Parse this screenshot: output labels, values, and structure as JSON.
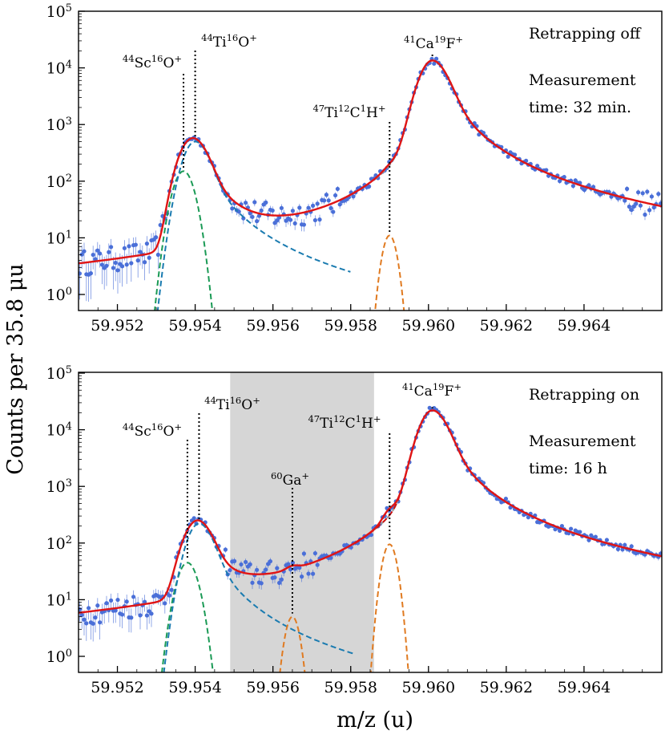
{
  "figure": {
    "ylabel": "Counts per 35.8 μu",
    "xlabel": "m/z (u)"
  },
  "colors": {
    "data": "#4a6fd8",
    "fit": "#e01515",
    "sc_component": "#1a9a55",
    "tio_component": "#1a7bb0",
    "tich_component": "#e07a20",
    "caf_component": "#999999",
    "caf_tail_component": "#cc1111",
    "shade": "#d6d6d6"
  },
  "chart_data": [
    {
      "type": "scatter",
      "panel": "top",
      "scale": "log",
      "xlim": [
        59.951,
        59.966
      ],
      "ylim_decades": [
        0,
        5
      ],
      "x_ticks": [
        "59.952",
        "59.954",
        "59.956",
        "59.958",
        "59.960",
        "59.962",
        "59.964"
      ],
      "y_ticks": [
        {
          "base": "10",
          "exp": "0"
        },
        {
          "base": "10",
          "exp": "1"
        },
        {
          "base": "10",
          "exp": "2"
        },
        {
          "base": "10",
          "exp": "3"
        },
        {
          "base": "10",
          "exp": "4"
        },
        {
          "base": "10",
          "exp": "5"
        }
      ],
      "notes": [
        "Retrapping off",
        "Measurement",
        "time: 32 min."
      ],
      "peaks": [
        {
          "mass": 59.9537,
          "counts": 150,
          "label": [
            {
              "t": "44",
              "sup": true
            },
            {
              "t": "Sc",
              "sup": false
            },
            {
              "t": "16",
              "sup": true
            },
            {
              "t": "O",
              "sup": false
            },
            {
              "t": "+",
              "sup": true
            }
          ]
        },
        {
          "mass": 59.954,
          "counts": 500,
          "label": [
            {
              "t": "44",
              "sup": true
            },
            {
              "t": "Ti",
              "sup": false
            },
            {
              "t": "16",
              "sup": true
            },
            {
              "t": "O",
              "sup": false
            },
            {
              "t": "+",
              "sup": true
            }
          ]
        },
        {
          "mass": 59.959,
          "counts": 11,
          "label": [
            {
              "t": "47",
              "sup": true
            },
            {
              "t": "Ti",
              "sup": false
            },
            {
              "t": "12",
              "sup": true
            },
            {
              "t": "C",
              "sup": false
            },
            {
              "t": "1",
              "sup": true
            },
            {
              "t": "H",
              "sup": false
            },
            {
              "t": "+",
              "sup": true
            }
          ]
        },
        {
          "mass": 59.9601,
          "counts": 13500,
          "label": [
            {
              "t": "41",
              "sup": true
            },
            {
              "t": "Ca",
              "sup": false
            },
            {
              "t": "19",
              "sup": true
            },
            {
              "t": "F",
              "sup": false
            },
            {
              "t": "+",
              "sup": true
            }
          ]
        }
      ],
      "baseline_counts": 0.55
    },
    {
      "type": "scatter",
      "panel": "bottom",
      "scale": "log",
      "xlim": [
        59.951,
        59.966
      ],
      "ylim_decades": [
        0,
        5
      ],
      "x_ticks": [
        "59.952",
        "59.954",
        "59.956",
        "59.958",
        "59.960",
        "59.962",
        "59.964"
      ],
      "y_ticks": [
        {
          "base": "10",
          "exp": "0"
        },
        {
          "base": "10",
          "exp": "1"
        },
        {
          "base": "10",
          "exp": "2"
        },
        {
          "base": "10",
          "exp": "3"
        },
        {
          "base": "10",
          "exp": "4"
        },
        {
          "base": "10",
          "exp": "5"
        }
      ],
      "notes": [
        "Retrapping on",
        "Measurement",
        "time: 16 h"
      ],
      "shaded_region": [
        59.9549,
        59.9586
      ],
      "peaks": [
        {
          "mass": 59.9538,
          "counts": 45,
          "label": [
            {
              "t": "44",
              "sup": true
            },
            {
              "t": "Sc",
              "sup": false
            },
            {
              "t": "16",
              "sup": true
            },
            {
              "t": "O",
              "sup": false
            },
            {
              "t": "+",
              "sup": true
            }
          ]
        },
        {
          "mass": 59.9541,
          "counts": 220,
          "label": [
            {
              "t": "44",
              "sup": true
            },
            {
              "t": "Ti",
              "sup": false
            },
            {
              "t": "16",
              "sup": true
            },
            {
              "t": "O",
              "sup": false
            },
            {
              "t": "+",
              "sup": true
            }
          ]
        },
        {
          "mass": 59.9565,
          "counts": 5,
          "label": [
            {
              "t": "60",
              "sup": true
            },
            {
              "t": "Ga",
              "sup": false
            },
            {
              "t": "+",
              "sup": true
            }
          ]
        },
        {
          "mass": 59.959,
          "counts": 95,
          "label": [
            {
              "t": "47",
              "sup": true
            },
            {
              "t": "Ti",
              "sup": false
            },
            {
              "t": "12",
              "sup": true
            },
            {
              "t": "C",
              "sup": false
            },
            {
              "t": "1",
              "sup": true
            },
            {
              "t": "H",
              "sup": false
            },
            {
              "t": "+",
              "sup": true
            }
          ]
        },
        {
          "mass": 59.9601,
          "counts": 22000,
          "label": [
            {
              "t": "41",
              "sup": true
            },
            {
              "t": "Ca",
              "sup": false
            },
            {
              "t": "19",
              "sup": true
            },
            {
              "t": "F",
              "sup": false
            },
            {
              "t": "+",
              "sup": true
            }
          ]
        }
      ],
      "baseline_counts": 1.0
    }
  ]
}
